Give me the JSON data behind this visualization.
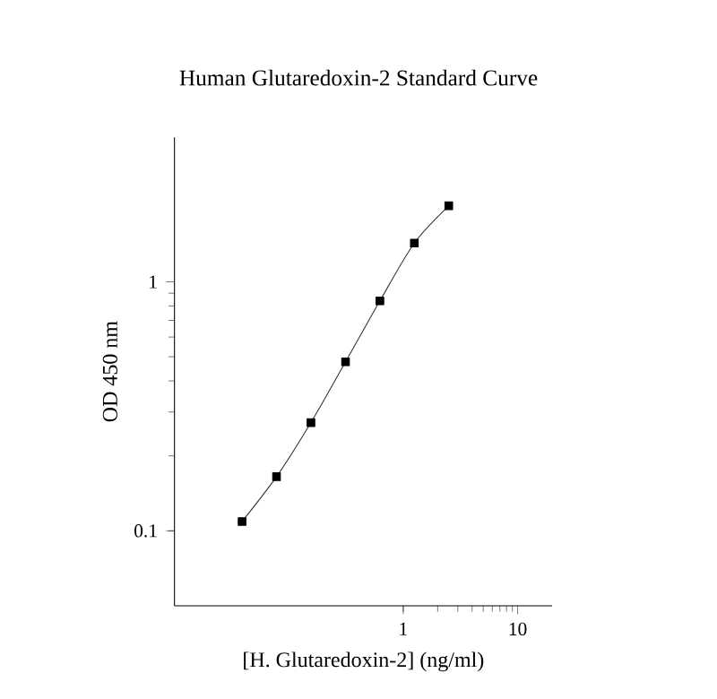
{
  "chart_data": {
    "type": "line",
    "title": "Human Glutaredoxin-2 Standard Curve",
    "xlabel": "[H. Glutaredoxin-2] (ng/ml)",
    "ylabel": "OD 450 nm",
    "x": [
      0.039,
      0.078,
      0.156,
      0.313,
      0.625,
      1.25,
      2.5
    ],
    "values": [
      0.109,
      0.165,
      0.272,
      0.477,
      0.838,
      1.43,
      2.02
    ],
    "color": "#333333",
    "marker": "square",
    "log": "xy",
    "xlim": [
      0.01,
      20
    ],
    "ylim": [
      0.05,
      3.8
    ],
    "xticks": [
      1,
      10
    ],
    "yticks": [
      0.1,
      1
    ]
  }
}
